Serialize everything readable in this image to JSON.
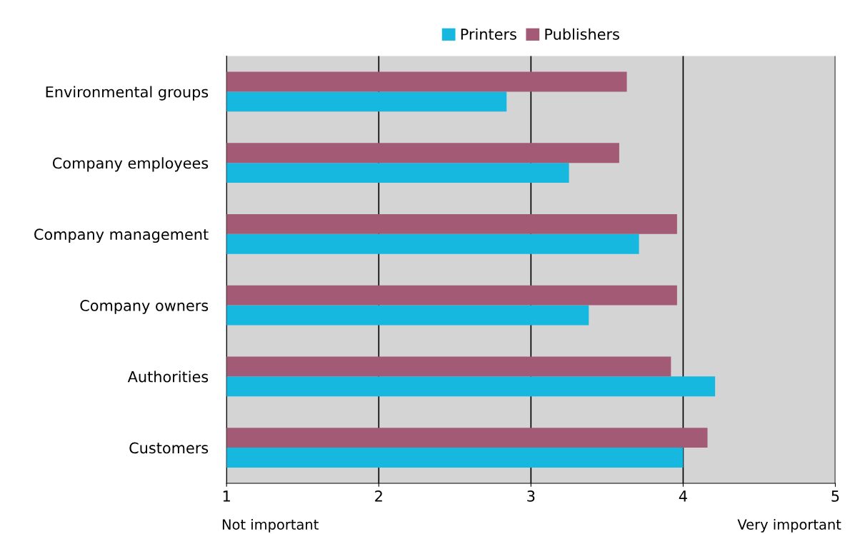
{
  "chart_data": {
    "type": "bar",
    "orientation": "horizontal",
    "categories": [
      "Environmental groups",
      "Company employees",
      "Company management",
      "Company owners",
      "Authorities",
      "Customers"
    ],
    "series": [
      {
        "name": "Printers",
        "color": "#16b8e0",
        "values": [
          2.84,
          3.25,
          3.71,
          3.38,
          4.21,
          4.0
        ]
      },
      {
        "name": "Publishers",
        "color": "#a35a75",
        "values": [
          3.63,
          3.58,
          3.96,
          3.96,
          3.92,
          4.16
        ]
      }
    ],
    "xlim": [
      1,
      5
    ],
    "xticks": [
      1,
      2,
      3,
      4,
      5
    ],
    "grid": "x",
    "legend": "top",
    "annotations": [
      "Not important",
      "Very important"
    ]
  }
}
